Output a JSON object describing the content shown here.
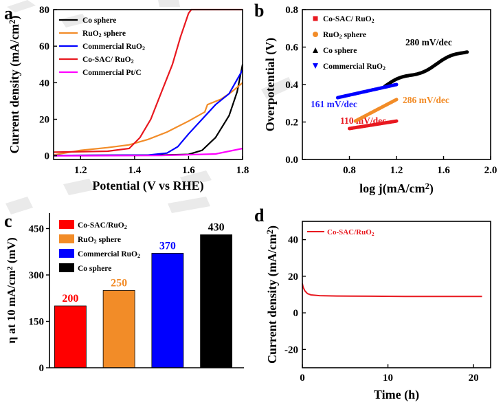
{
  "figure": {
    "background_marks_color": "#d9d9d9"
  },
  "chart_data": [
    {
      "panel": "a",
      "type": "line",
      "xlabel": "Potential (V vs RHE)",
      "ylabel": "Current density (mA/cm²)",
      "xlim": [
        1.1,
        1.8
      ],
      "ylim": [
        -2,
        80
      ],
      "xticks": [
        "1.2",
        "1.4",
        "1.6",
        "1.8"
      ],
      "yticks": [
        "0",
        "20",
        "40",
        "60",
        "80"
      ],
      "legend_position": "top-left",
      "series": [
        {
          "name": "Co sphere",
          "color": "#000000",
          "points": [
            [
              1.1,
              0.2
            ],
            [
              1.5,
              0.4
            ],
            [
              1.6,
              0.8
            ],
            [
              1.65,
              3
            ],
            [
              1.7,
              10
            ],
            [
              1.75,
              22
            ],
            [
              1.78,
              35
            ],
            [
              1.8,
              50
            ]
          ]
        },
        {
          "name": "RuO₂ sphere",
          "color": "#f28c28",
          "points": [
            [
              1.1,
              0.5
            ],
            [
              1.2,
              3
            ],
            [
              1.3,
              4.5
            ],
            [
              1.38,
              6
            ],
            [
              1.45,
              9
            ],
            [
              1.52,
              13
            ],
            [
              1.6,
              19
            ],
            [
              1.66,
              24
            ],
            [
              1.67,
              28
            ],
            [
              1.72,
              31
            ],
            [
              1.76,
              35
            ],
            [
              1.8,
              40
            ]
          ]
        },
        {
          "name": "Commercial RuO₂",
          "color": "#0000ff",
          "points": [
            [
              1.1,
              0.2
            ],
            [
              1.45,
              0.4
            ],
            [
              1.52,
              1.5
            ],
            [
              1.56,
              5
            ],
            [
              1.6,
              12
            ],
            [
              1.65,
              20
            ],
            [
              1.7,
              28
            ],
            [
              1.75,
              34
            ],
            [
              1.8,
              47
            ]
          ]
        },
        {
          "name": "Co-SAC/ RuO₂",
          "color": "#e8181f",
          "points": [
            [
              1.1,
              2
            ],
            [
              1.3,
              2.5
            ],
            [
              1.38,
              4
            ],
            [
              1.42,
              10
            ],
            [
              1.46,
              20
            ],
            [
              1.5,
              35
            ],
            [
              1.54,
              50
            ],
            [
              1.57,
              65
            ],
            [
              1.6,
              78
            ],
            [
              1.61,
              80
            ],
            [
              1.8,
              80
            ]
          ]
        },
        {
          "name": "Commercial Pt/C",
          "color": "#ff00ff",
          "points": [
            [
              1.1,
              0
            ],
            [
              1.5,
              0.2
            ],
            [
              1.7,
              1
            ],
            [
              1.8,
              4
            ]
          ]
        }
      ]
    },
    {
      "panel": "b",
      "type": "scatter",
      "xlabel": "log j(mA/cm²)",
      "ylabel": "Overpotential (V)",
      "xlim": [
        0.4,
        2.0
      ],
      "ylim": [
        0.0,
        0.8
      ],
      "xticks": [
        "0.8",
        "1.2",
        "1.6",
        "2.0"
      ],
      "yticks": [
        "0.0",
        "0.2",
        "0.4",
        "0.6",
        "0.8"
      ],
      "legend_position": "top-left",
      "series": [
        {
          "name": "Co-SAC/ RuO₂",
          "color": "#e8181f",
          "marker": "square",
          "x_range": [
            0.8,
            1.2
          ],
          "y_range": [
            0.165,
            0.205
          ],
          "slope_label": "110 mV/dec"
        },
        {
          "name": "RuO₂ sphere",
          "color": "#f28c28",
          "marker": "circle",
          "x_range": [
            0.85,
            1.2
          ],
          "y_range": [
            0.205,
            0.32
          ],
          "slope_label": "286 mV/dec"
        },
        {
          "name": "Co sphere",
          "color": "#000000",
          "marker": "triangle",
          "x_range": [
            1.1,
            1.8
          ],
          "y_range": [
            0.39,
            0.58
          ],
          "slope_label": "280 mV/dec"
        },
        {
          "name": "Commercial RuO₂",
          "color": "#0000ff",
          "marker": "triangle-down",
          "x_range": [
            0.7,
            1.2
          ],
          "y_range": [
            0.33,
            0.4
          ],
          "slope_label": "161 mV/dec"
        }
      ]
    },
    {
      "panel": "c",
      "type": "bar",
      "ylabel": "η at 10 mA/cm² (mV)",
      "ylim": [
        0,
        500
      ],
      "yticks": [
        "0",
        "150",
        "300",
        "450"
      ],
      "legend_position": "top-left",
      "categories": [
        "Co-SAC/RuO₂",
        "RuO₂ sphere",
        "Commercial RuO₂",
        "Co sphere"
      ],
      "values": [
        200,
        250,
        370,
        430
      ],
      "colors": [
        "#ff0000",
        "#f28c28",
        "#0000ff",
        "#000000"
      ],
      "value_labels": [
        "200",
        "250",
        "370",
        "430"
      ]
    },
    {
      "panel": "d",
      "type": "line",
      "xlabel": "Time (h)",
      "ylabel": "Current density (mA/cm²)",
      "xlim": [
        0,
        22
      ],
      "ylim": [
        -30,
        50
      ],
      "xticks": [
        "0",
        "10",
        "20"
      ],
      "yticks": [
        "-20",
        "0",
        "20",
        "40"
      ],
      "legend_position": "top-left",
      "series": [
        {
          "name": "Co-SAC/RuO₂",
          "color": "#e8181f",
          "points": [
            [
              0,
              16
            ],
            [
              0.1,
              14
            ],
            [
              0.3,
              12
            ],
            [
              0.6,
              10.5
            ],
            [
              1,
              9.8
            ],
            [
              2,
              9.4
            ],
            [
              4,
              9.2
            ],
            [
              8,
              9.1
            ],
            [
              12,
              9.0
            ],
            [
              16,
              9.0
            ],
            [
              21,
              9.0
            ]
          ]
        }
      ]
    }
  ]
}
